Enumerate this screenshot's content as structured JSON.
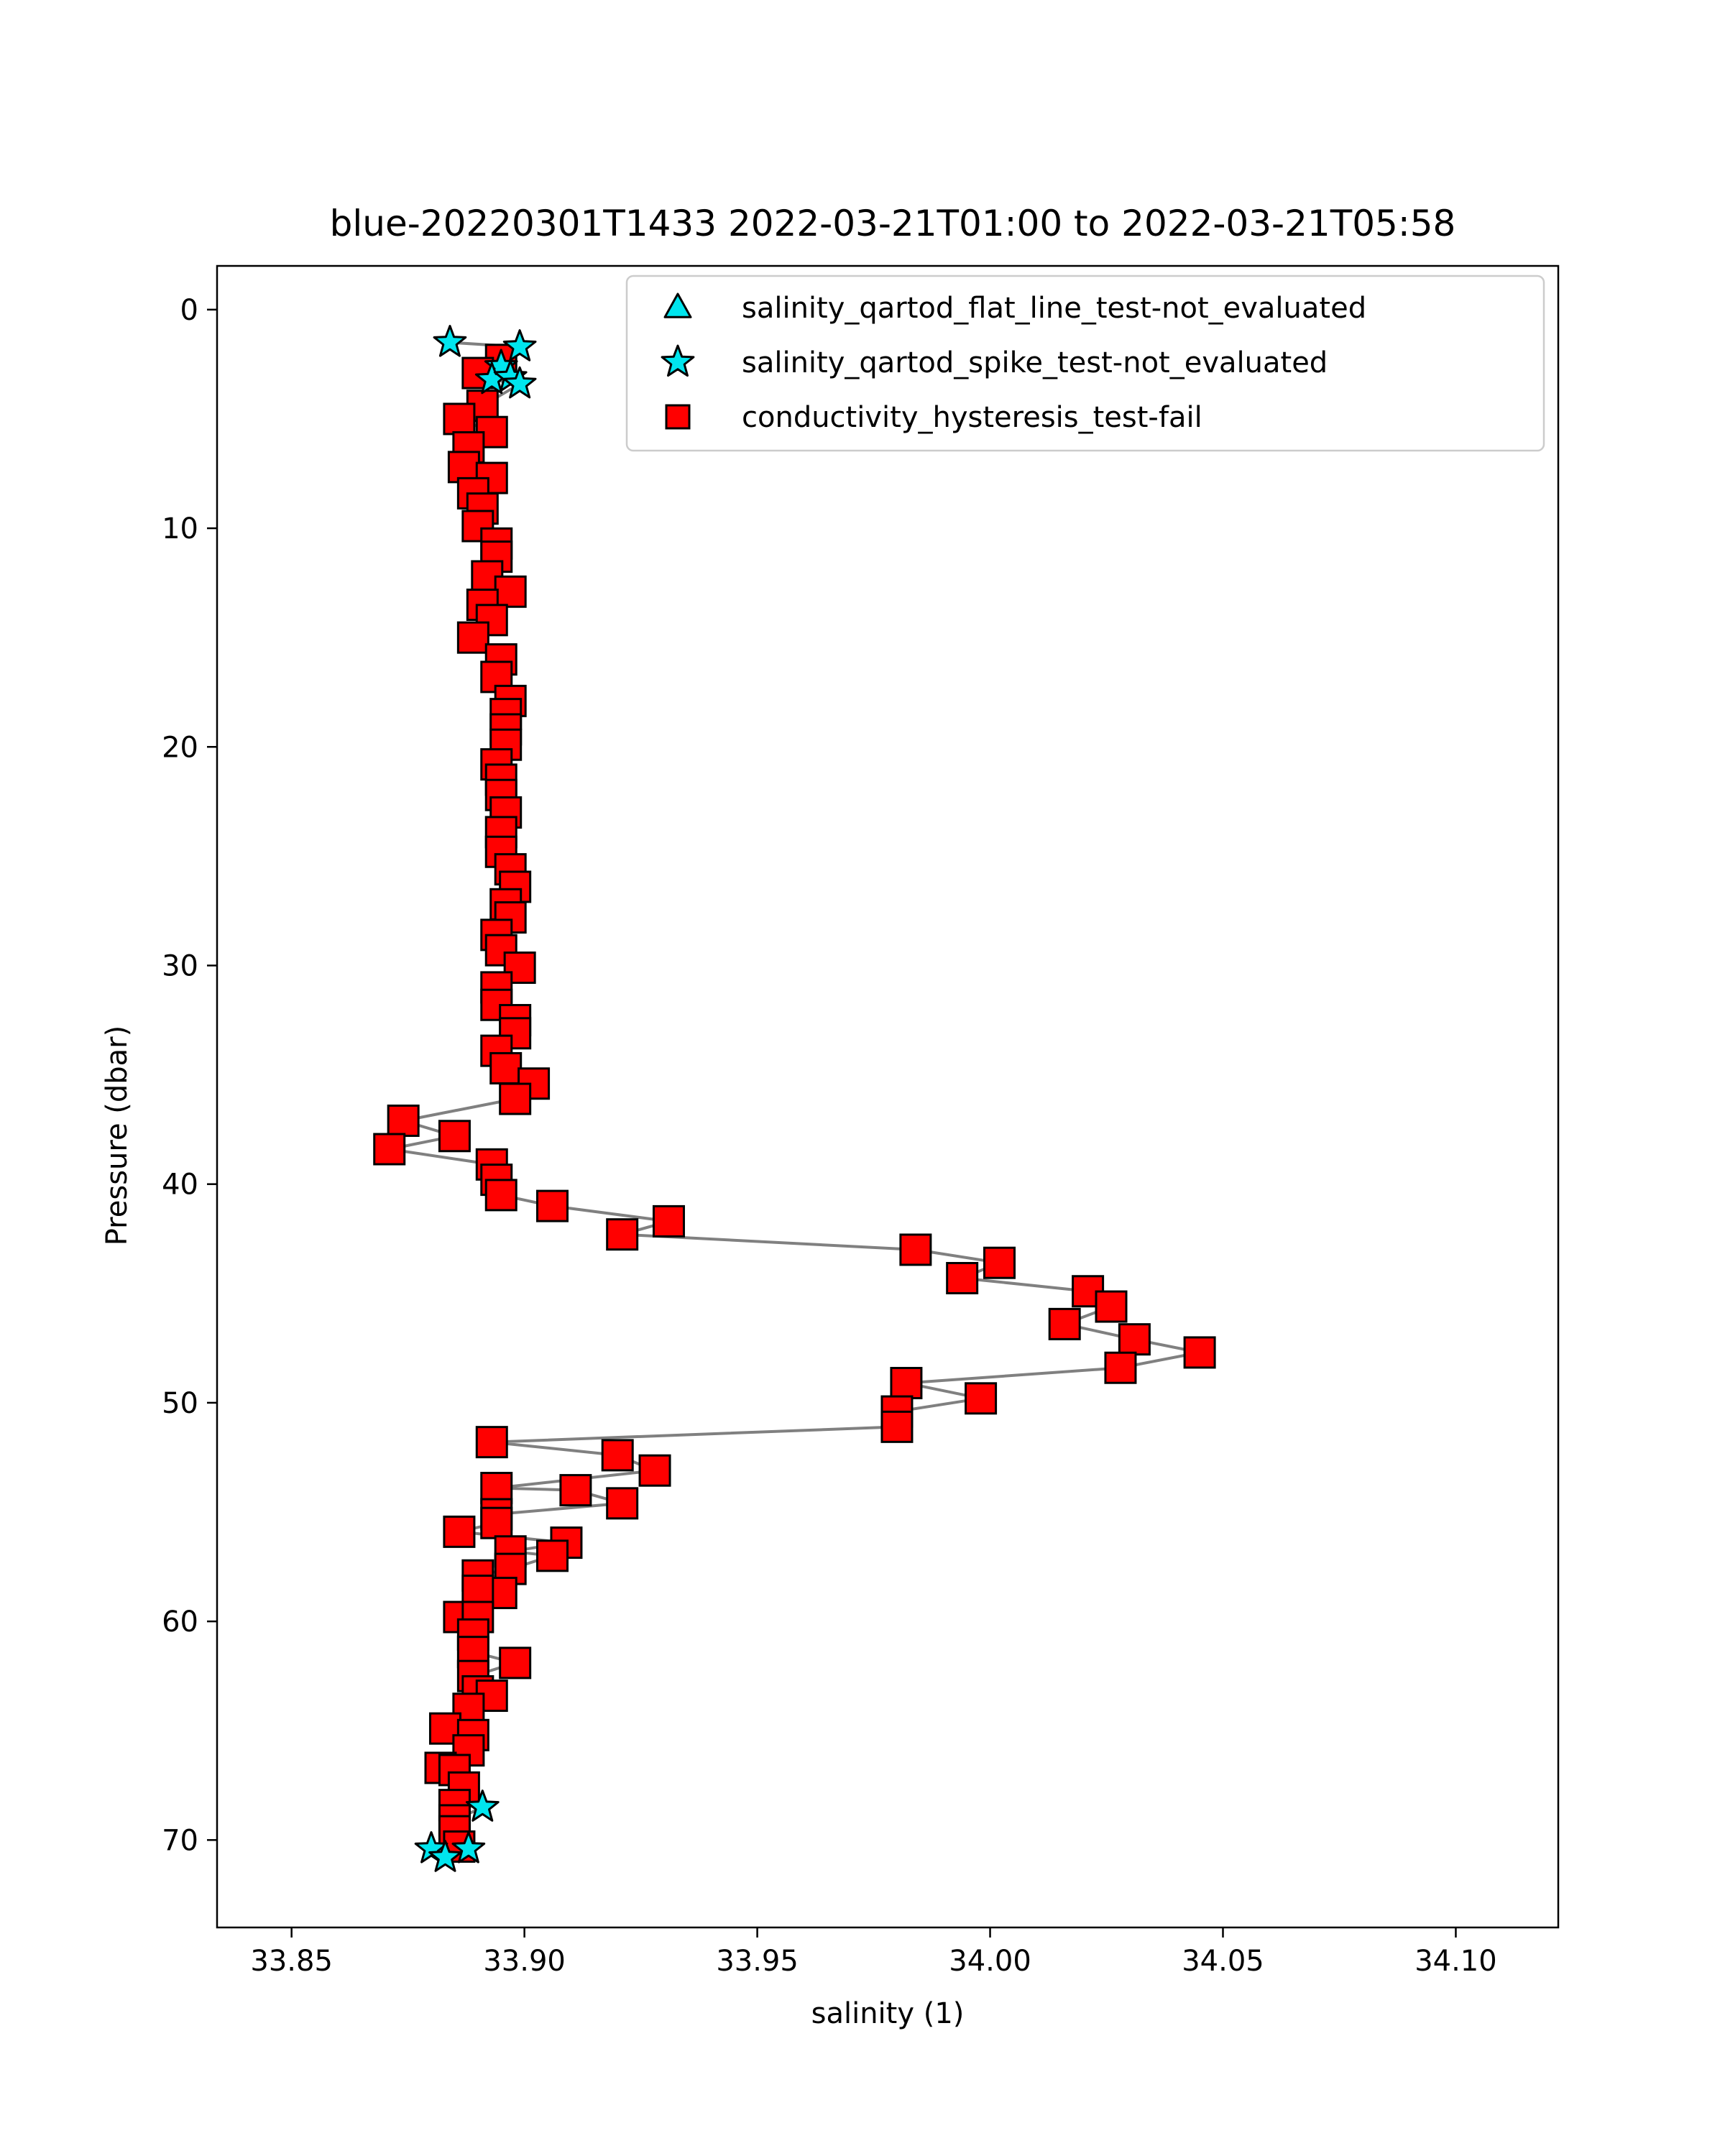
{
  "chart_data": {
    "type": "scatter",
    "title": "blue-20220301T1433 2022-03-21T01:00 to 2022-03-21T05:58",
    "xlabel": "salinity (1)",
    "ylabel": "Pressure (dbar)",
    "xlim": [
      33.834,
      34.122
    ],
    "ylim": [
      74,
      -2
    ],
    "y_inverted": true,
    "x_ticks": [
      33.85,
      33.9,
      33.95,
      34.0,
      34.05,
      34.1
    ],
    "x_tick_labels": [
      "33.85",
      "33.90",
      "33.95",
      "34.00",
      "34.05",
      "34.10"
    ],
    "y_ticks": [
      0,
      10,
      20,
      30,
      40,
      50,
      60,
      70
    ],
    "y_tick_labels": [
      "0",
      "10",
      "20",
      "30",
      "40",
      "50",
      "60",
      "70"
    ],
    "grid": false,
    "legend_position": "top-right",
    "colors": {
      "profile_line": "#808080",
      "flat_line_marker": "#00e5ee",
      "spike_marker": "#00e5ee",
      "hysteresis_marker": "#ff0000"
    },
    "series": [
      {
        "name": "salinity_qartod_flat_line_test-not_evaluated",
        "marker": "triangle",
        "points": []
      },
      {
        "name": "salinity_qartod_spike_test-not_evaluated",
        "marker": "star",
        "points": [
          [
            33.884,
            1.5
          ],
          [
            33.899,
            1.7
          ],
          [
            33.895,
            2.6
          ],
          [
            33.893,
            3.2
          ],
          [
            33.897,
            3.1
          ],
          [
            33.899,
            3.4
          ],
          [
            33.891,
            68.5
          ],
          [
            33.88,
            70.4
          ],
          [
            33.883,
            70.8
          ],
          [
            33.888,
            70.4
          ]
        ]
      },
      {
        "name": "conductivity_hysteresis_test-fail",
        "marker": "square",
        "points": [
          [
            33.895,
            2.3
          ],
          [
            33.89,
            2.9
          ],
          [
            33.891,
            4.4
          ],
          [
            33.893,
            5.6
          ],
          [
            33.886,
            5.0
          ],
          [
            33.888,
            6.3
          ],
          [
            33.887,
            7.2
          ],
          [
            33.893,
            7.7
          ],
          [
            33.889,
            8.4
          ],
          [
            33.891,
            9.1
          ],
          [
            33.89,
            9.9
          ],
          [
            33.894,
            10.7
          ],
          [
            33.894,
            11.3
          ],
          [
            33.892,
            12.2
          ],
          [
            33.897,
            12.9
          ],
          [
            33.891,
            13.5
          ],
          [
            33.893,
            14.2
          ],
          [
            33.889,
            15.0
          ],
          [
            33.895,
            16.0
          ],
          [
            33.894,
            16.8
          ],
          [
            33.897,
            17.9
          ],
          [
            33.896,
            18.5
          ],
          [
            33.896,
            19.2
          ],
          [
            33.896,
            19.9
          ],
          [
            33.894,
            20.8
          ],
          [
            33.895,
            21.5
          ],
          [
            33.895,
            22.2
          ],
          [
            33.896,
            23.0
          ],
          [
            33.895,
            23.9
          ],
          [
            33.895,
            24.8
          ],
          [
            33.897,
            25.6
          ],
          [
            33.898,
            26.4
          ],
          [
            33.896,
            27.2
          ],
          [
            33.897,
            27.8
          ],
          [
            33.894,
            28.6
          ],
          [
            33.895,
            29.3
          ],
          [
            33.899,
            30.1
          ],
          [
            33.894,
            31.0
          ],
          [
            33.894,
            31.8
          ],
          [
            33.898,
            32.5
          ],
          [
            33.898,
            33.1
          ],
          [
            33.894,
            33.9
          ],
          [
            33.896,
            34.7
          ],
          [
            33.902,
            35.4
          ],
          [
            33.898,
            36.1
          ],
          [
            33.874,
            37.1
          ],
          [
            33.885,
            37.8
          ],
          [
            33.871,
            38.4
          ],
          [
            33.893,
            39.1
          ],
          [
            33.894,
            39.8
          ],
          [
            33.895,
            40.5
          ],
          [
            33.906,
            41.0
          ],
          [
            33.931,
            41.7
          ],
          [
            33.921,
            42.3
          ],
          [
            33.984,
            43.0
          ],
          [
            34.002,
            43.6
          ],
          [
            33.994,
            44.3
          ],
          [
            34.021,
            44.9
          ],
          [
            34.026,
            45.6
          ],
          [
            34.016,
            46.4
          ],
          [
            34.031,
            47.1
          ],
          [
            34.045,
            47.7
          ],
          [
            34.028,
            48.4
          ],
          [
            33.982,
            49.1
          ],
          [
            33.998,
            49.8
          ],
          [
            33.98,
            50.4
          ],
          [
            33.98,
            51.1
          ],
          [
            33.893,
            51.8
          ],
          [
            33.92,
            52.4
          ],
          [
            33.928,
            53.1
          ],
          [
            33.911,
            54.0
          ],
          [
            33.894,
            53.9
          ],
          [
            33.921,
            54.6
          ],
          [
            33.894,
            55.1
          ],
          [
            33.894,
            55.5
          ],
          [
            33.886,
            55.9
          ],
          [
            33.909,
            56.4
          ],
          [
            33.906,
            57.0
          ],
          [
            33.897,
            56.8
          ],
          [
            33.897,
            57.6
          ],
          [
            33.89,
            57.9
          ],
          [
            33.895,
            58.7
          ],
          [
            33.89,
            58.6
          ],
          [
            33.886,
            59.8
          ],
          [
            33.89,
            59.8
          ],
          [
            33.889,
            60.6
          ],
          [
            33.889,
            61.4
          ],
          [
            33.898,
            61.9
          ],
          [
            33.889,
            62.5
          ],
          [
            33.89,
            63.2
          ],
          [
            33.893,
            63.4
          ],
          [
            33.888,
            64.0
          ],
          [
            33.883,
            64.9
          ],
          [
            33.889,
            65.2
          ],
          [
            33.888,
            65.9
          ],
          [
            33.882,
            66.7
          ],
          [
            33.885,
            66.8
          ],
          [
            33.887,
            67.6
          ],
          [
            33.885,
            68.4
          ],
          [
            33.885,
            69.1
          ],
          [
            33.885,
            69.6
          ],
          [
            33.886,
            70.3
          ]
        ]
      }
    ]
  }
}
